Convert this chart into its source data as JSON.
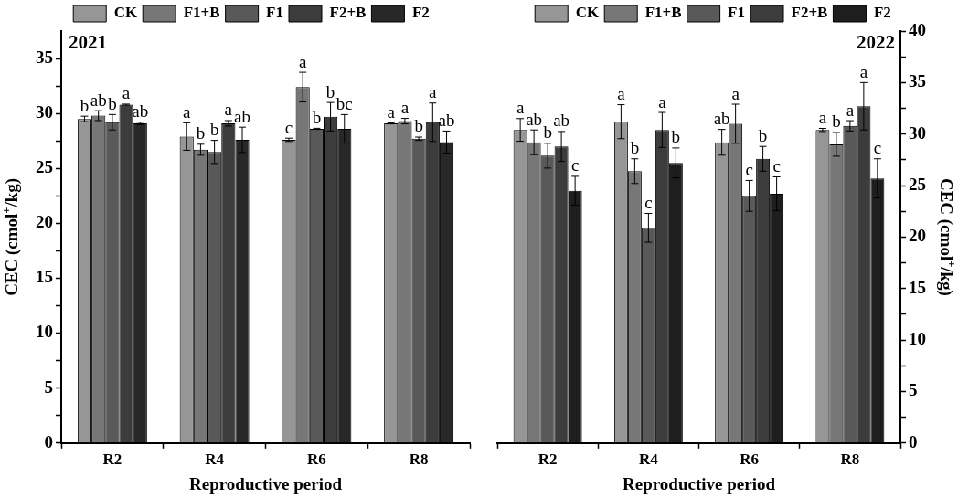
{
  "chart_data": [
    {
      "type": "bar",
      "title": "2021",
      "xlabel": "Reproductive period",
      "ylabel": "CEC (cmol$^{+}$/kg)",
      "categories": [
        "R2",
        "R4",
        "R6",
        "R8"
      ],
      "legend": "top",
      "grid": false,
      "ylim": [
        0,
        37.5
      ],
      "yticks": [
        0,
        {
          "value": 2.5,
          "label": null
        },
        5,
        {
          "value": 7.5,
          "label": null
        },
        10,
        {
          "value": 12.5,
          "label": null
        },
        15,
        {
          "value": 17.5,
          "label": null
        },
        20,
        {
          "value": 22.5,
          "label": null
        },
        25,
        {
          "value": 27.5,
          "label": null
        },
        30,
        {
          "value": 32.5,
          "label": null
        },
        35
      ],
      "series": [
        {
          "name": "CK",
          "color": "#969696",
          "values": [
            29.5,
            27.9,
            27.6,
            29.1
          ],
          "errors": [
            0.25,
            1.25,
            0.15,
            0.05
          ],
          "value_labels": [
            "b",
            "a",
            "c",
            "a"
          ]
        },
        {
          "name": "F1+B",
          "color": "#777777",
          "values": [
            29.8,
            26.7,
            32.4,
            29.3
          ],
          "errors": [
            0.45,
            0.5,
            1.35,
            0.25
          ],
          "value_labels": [
            "ab",
            "b",
            "a",
            "a"
          ]
        },
        {
          "name": "F1",
          "color": "#595959",
          "values": [
            29.2,
            26.5,
            28.6,
            27.7
          ],
          "errors": [
            0.7,
            1.05,
            0.05,
            0.15
          ],
          "value_labels": [
            "b",
            "b",
            "b",
            "b"
          ]
        },
        {
          "name": "F2+B",
          "color": "#3c3c3c",
          "values": [
            30.8,
            29.1,
            29.7,
            29.2
          ],
          "errors": [
            0.05,
            0.25,
            1.3,
            1.75
          ],
          "value_labels": [
            "a",
            "a",
            "b",
            "a"
          ]
        },
        {
          "name": "F2",
          "color": "#282828",
          "values": [
            29.1,
            27.6,
            28.6,
            27.4
          ],
          "errors": [
            0.1,
            1.15,
            1.3,
            1.0
          ],
          "value_labels": [
            "ab",
            "ab",
            "bc",
            "ab"
          ]
        }
      ]
    },
    {
      "type": "bar",
      "title": "2022",
      "xlabel": "Reproductive period",
      "y2label": "CEC (cmol$^{+}$/kg)",
      "categories": [
        "R2",
        "R4",
        "R6",
        "R8"
      ],
      "legend": "top",
      "grid": false,
      "y2lim": [
        0,
        40
      ],
      "y2ticks": [
        0,
        {
          "value": 2.5,
          "label": null
        },
        5,
        {
          "value": 7.5,
          "label": null
        },
        10,
        {
          "value": 12.5,
          "label": null
        },
        15,
        {
          "value": 17.5,
          "label": null
        },
        20,
        {
          "value": 22.5,
          "label": null
        },
        25,
        {
          "value": 27.5,
          "label": null
        },
        30,
        {
          "value": 32.5,
          "label": null
        },
        35,
        {
          "value": 37.5,
          "label": null
        },
        40
      ],
      "series": [
        {
          "name": "CK",
          "color": "#969696",
          "axis": "y2",
          "values": [
            30.4,
            31.2,
            29.2,
            30.4
          ],
          "errors": [
            1.1,
            1.65,
            1.25,
            0.15
          ],
          "value_labels": [
            "a",
            "a",
            "ab",
            "a"
          ]
        },
        {
          "name": "F1+B",
          "color": "#777777",
          "axis": "y2",
          "values": [
            29.2,
            26.4,
            31.0,
            29.0
          ],
          "errors": [
            1.2,
            1.2,
            1.9,
            1.15
          ],
          "value_labels": [
            "ab",
            "b",
            "a",
            "b"
          ]
        },
        {
          "name": "F1",
          "color": "#595959",
          "axis": "y2",
          "values": [
            27.9,
            20.9,
            24.0,
            30.8
          ],
          "errors": [
            1.2,
            1.4,
            1.5,
            0.5
          ],
          "value_labels": [
            "b",
            "c",
            "c",
            "a"
          ]
        },
        {
          "name": "F2+B",
          "color": "#3c3c3c",
          "axis": "y2",
          "values": [
            28.8,
            30.4,
            27.6,
            32.7
          ],
          "errors": [
            1.45,
            1.7,
            1.2,
            2.3
          ],
          "value_labels": [
            "ab",
            "a",
            "b",
            "a"
          ]
        },
        {
          "name": "F2",
          "color": "#1e1e1e",
          "axis": "y2",
          "values": [
            24.5,
            27.2,
            24.2,
            25.7
          ],
          "errors": [
            1.4,
            1.45,
            1.65,
            1.9
          ],
          "value_labels": [
            "c",
            "b",
            "c",
            "c"
          ]
        }
      ]
    }
  ]
}
